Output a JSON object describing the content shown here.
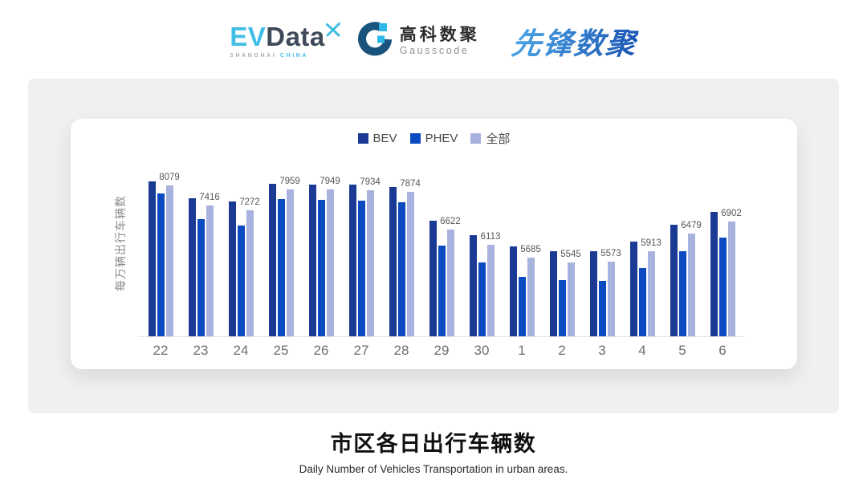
{
  "header": {
    "logos": {
      "evdata": {
        "part1": "EV",
        "part2": "Data",
        "sub_left": "SHANGHAI",
        "sub_right": "CHINA"
      },
      "gausscode": {
        "name_cn": "高科数聚",
        "name_en": "Gausscode"
      },
      "pioneer": {
        "name": "先锋数聚"
      }
    }
  },
  "chart_data": {
    "type": "bar",
    "title": "",
    "xlabel": "",
    "ylabel": "每万辆出行车辆数",
    "categories": [
      "22",
      "23",
      "24",
      "25",
      "26",
      "27",
      "28",
      "29",
      "30",
      "1",
      "2",
      "3",
      "4",
      "5",
      "6"
    ],
    "series": [
      {
        "name": "BEV",
        "color": "#1A3A94",
        "values": [
          8210,
          7660,
          7545,
          8125,
          8105,
          8120,
          8020,
          6925,
          6450,
          6075,
          5910,
          5915,
          6240,
          6790,
          7200
        ]
      },
      {
        "name": "PHEV",
        "color": "#0B4AC0",
        "values": [
          7830,
          6965,
          6770,
          7635,
          7605,
          7590,
          7525,
          6105,
          5525,
          5070,
          4955,
          4940,
          5355,
          5915,
          6370
        ]
      },
      {
        "name": "全部",
        "color": "#A8B2DE",
        "values": [
          8079,
          7416,
          7272,
          7959,
          7949,
          7934,
          7874,
          6622,
          6113,
          5685,
          5545,
          5573,
          5913,
          6479,
          6902
        ]
      }
    ],
    "data_labels_on_series": "全部",
    "data_labels": [
      8079,
      7416,
      7272,
      7959,
      7949,
      7934,
      7874,
      6622,
      6113,
      5685,
      5545,
      5573,
      5913,
      6479,
      6902
    ],
    "ylim": [
      3100,
      8400
    ],
    "legend": [
      "BEV",
      "PHEV",
      "全部"
    ],
    "legend_position": "top",
    "grid": false,
    "axis_line_color": "#E3E3E3"
  },
  "footer": {
    "title": "市区各日出行车辆数",
    "subtitle": "Daily Number of Vehicles Transportation in urban areas."
  }
}
